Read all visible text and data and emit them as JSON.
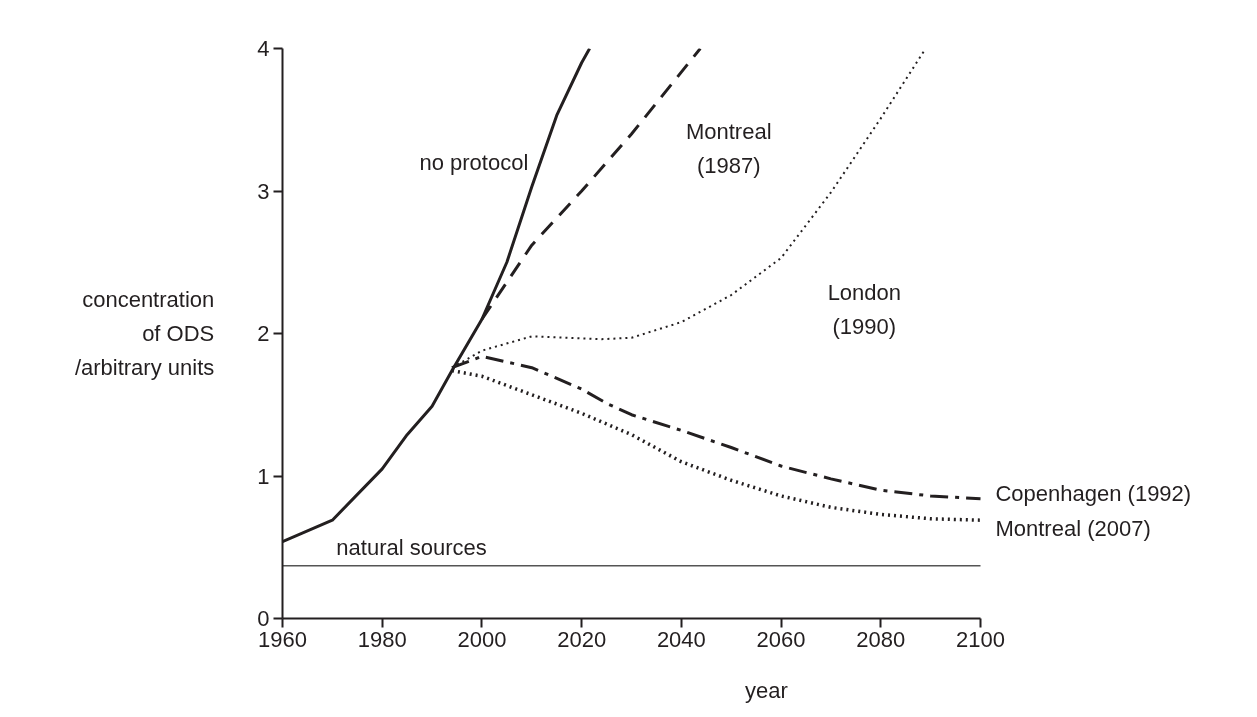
{
  "chart_data": {
    "type": "line",
    "xlabel": "year",
    "ylabel": "concentration\nof ODS\n/arbitrary units",
    "xlim": [
      1960,
      2100
    ],
    "ylim": [
      0,
      4
    ],
    "xticks": [
      1960,
      1980,
      2000,
      2020,
      2040,
      2060,
      2080,
      2100
    ],
    "yticks": [
      0,
      1,
      2,
      3,
      4
    ],
    "grid": false,
    "series": [
      {
        "name": "no protocol",
        "color": "#231f20",
        "line_style": "solid",
        "x": [
          1960,
          1970,
          1980,
          1985,
          1990,
          1994,
          2000,
          2005,
          2010,
          2015,
          2020,
          2021.6
        ],
        "values": [
          0.54,
          0.69,
          1.05,
          1.29,
          1.49,
          1.74,
          2.1,
          2.5,
          3.03,
          3.53,
          3.9,
          4.0
        ]
      },
      {
        "name": "Montreal\n(1987)",
        "color": "#231f20",
        "line_style": "dashed",
        "x": [
          2000,
          2010,
          2020,
          2030,
          2043.8
        ],
        "values": [
          2.1,
          2.62,
          3.0,
          3.4,
          4.0
        ]
      },
      {
        "name": "London\n(1990)",
        "color": "#231f20",
        "line_style": "dotted",
        "x": [
          1994,
          2000,
          2010,
          2024,
          2030,
          2040,
          2050,
          2060,
          2070,
          2080,
          2089
        ],
        "values": [
          1.76,
          1.88,
          1.98,
          1.96,
          1.97,
          2.08,
          2.27,
          2.53,
          2.99,
          3.51,
          4.0
        ]
      },
      {
        "name": "Copenhagen (1992)",
        "color": "#231f20",
        "line_style": "dashdot",
        "x": [
          1994,
          2000,
          2010,
          2020,
          2025,
          2030,
          2040,
          2050,
          2060,
          2070,
          2080,
          2090,
          2100
        ],
        "values": [
          1.76,
          1.84,
          1.76,
          1.61,
          1.51,
          1.43,
          1.32,
          1.2,
          1.07,
          0.98,
          0.9,
          0.86,
          0.84
        ]
      },
      {
        "name": "Montreal (2007)",
        "color": "#231f20",
        "line_style": "dotted",
        "x": [
          1994,
          2000,
          2010,
          2020,
          2030,
          2040,
          2050,
          2060,
          2070,
          2080,
          2090,
          2100
        ],
        "values": [
          1.74,
          1.7,
          1.57,
          1.44,
          1.29,
          1.1,
          0.97,
          0.86,
          0.78,
          0.73,
          0.7,
          0.69
        ]
      }
    ],
    "ref_lines": [
      {
        "axis": "y",
        "value": 0.37,
        "label": "natural sources",
        "color": "#555555",
        "line_style": "solid"
      }
    ]
  }
}
